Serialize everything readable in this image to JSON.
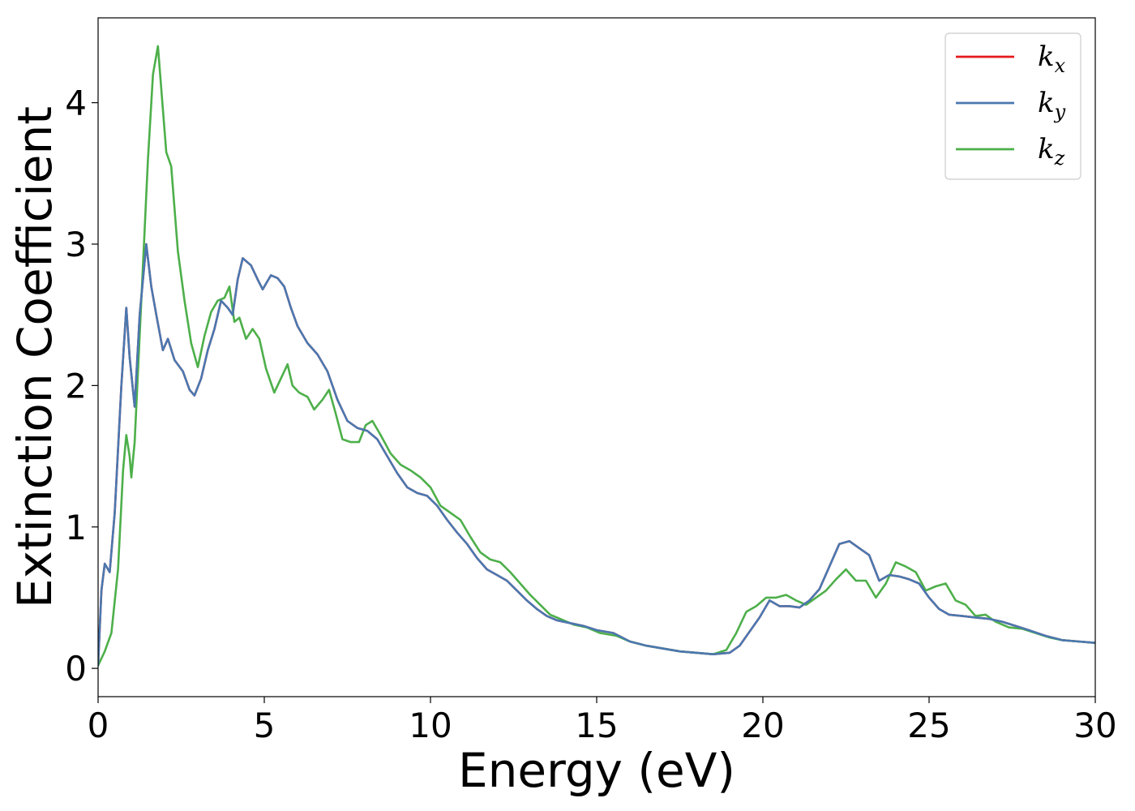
{
  "chart_data": {
    "type": "line",
    "title": "",
    "xlabel": "Energy (eV)",
    "ylabel": "Extinction Coefficient",
    "xlim": [
      0,
      30
    ],
    "ylim": [
      -0.2,
      4.6
    ],
    "xticks": [
      0,
      5,
      10,
      15,
      20,
      25,
      30
    ],
    "yticks": [
      0,
      1,
      2,
      3,
      4
    ],
    "grid": false,
    "legend_position": "top-right",
    "series": [
      {
        "name": "k_x",
        "legend_base": "k",
        "legend_sub": "x",
        "color": "#e41a1c",
        "points": [
          [
            0,
            0.02
          ],
          [
            0.1,
            0.55
          ],
          [
            0.2,
            0.74
          ],
          [
            0.35,
            0.68
          ],
          [
            0.5,
            1.1
          ],
          [
            0.7,
            2.0
          ],
          [
            0.85,
            2.55
          ],
          [
            0.95,
            2.2
          ],
          [
            1.1,
            1.85
          ],
          [
            1.25,
            2.5
          ],
          [
            1.45,
            3.0
          ],
          [
            1.6,
            2.7
          ],
          [
            1.75,
            2.5
          ],
          [
            1.95,
            2.25
          ],
          [
            2.1,
            2.33
          ],
          [
            2.3,
            2.18
          ],
          [
            2.55,
            2.1
          ],
          [
            2.75,
            1.97
          ],
          [
            2.9,
            1.93
          ],
          [
            3.1,
            2.05
          ],
          [
            3.3,
            2.25
          ],
          [
            3.5,
            2.4
          ],
          [
            3.7,
            2.6
          ],
          [
            3.9,
            2.55
          ],
          [
            4.05,
            2.5
          ],
          [
            4.2,
            2.75
          ],
          [
            4.35,
            2.9
          ],
          [
            4.6,
            2.85
          ],
          [
            4.8,
            2.75
          ],
          [
            4.95,
            2.68
          ],
          [
            5.2,
            2.78
          ],
          [
            5.4,
            2.76
          ],
          [
            5.6,
            2.7
          ],
          [
            5.8,
            2.55
          ],
          [
            6.0,
            2.42
          ],
          [
            6.3,
            2.3
          ],
          [
            6.6,
            2.22
          ],
          [
            6.9,
            2.1
          ],
          [
            7.2,
            1.9
          ],
          [
            7.5,
            1.75
          ],
          [
            7.8,
            1.7
          ],
          [
            8.1,
            1.68
          ],
          [
            8.4,
            1.62
          ],
          [
            8.7,
            1.5
          ],
          [
            9.0,
            1.38
          ],
          [
            9.3,
            1.28
          ],
          [
            9.6,
            1.24
          ],
          [
            9.9,
            1.22
          ],
          [
            10.2,
            1.15
          ],
          [
            10.5,
            1.05
          ],
          [
            10.8,
            0.96
          ],
          [
            11.1,
            0.88
          ],
          [
            11.4,
            0.78
          ],
          [
            11.7,
            0.7
          ],
          [
            12.0,
            0.66
          ],
          [
            12.3,
            0.62
          ],
          [
            12.6,
            0.55
          ],
          [
            12.9,
            0.48
          ],
          [
            13.2,
            0.42
          ],
          [
            13.5,
            0.37
          ],
          [
            13.8,
            0.34
          ],
          [
            14.2,
            0.32
          ],
          [
            14.6,
            0.3
          ],
          [
            15.0,
            0.27
          ],
          [
            15.5,
            0.25
          ],
          [
            16.0,
            0.19
          ],
          [
            16.5,
            0.16
          ],
          [
            17.0,
            0.14
          ],
          [
            17.5,
            0.12
          ],
          [
            18.0,
            0.11
          ],
          [
            18.5,
            0.1
          ],
          [
            19.0,
            0.11
          ],
          [
            19.3,
            0.16
          ],
          [
            19.6,
            0.26
          ],
          [
            19.9,
            0.36
          ],
          [
            20.2,
            0.48
          ],
          [
            20.5,
            0.44
          ],
          [
            20.8,
            0.44
          ],
          [
            21.1,
            0.43
          ],
          [
            21.4,
            0.48
          ],
          [
            21.7,
            0.56
          ],
          [
            22.0,
            0.72
          ],
          [
            22.3,
            0.88
          ],
          [
            22.6,
            0.9
          ],
          [
            22.9,
            0.85
          ],
          [
            23.2,
            0.8
          ],
          [
            23.5,
            0.62
          ],
          [
            23.8,
            0.66
          ],
          [
            24.1,
            0.65
          ],
          [
            24.4,
            0.63
          ],
          [
            24.7,
            0.6
          ],
          [
            25.0,
            0.5
          ],
          [
            25.3,
            0.42
          ],
          [
            25.6,
            0.38
          ],
          [
            26.0,
            0.37
          ],
          [
            26.4,
            0.36
          ],
          [
            26.8,
            0.35
          ],
          [
            27.2,
            0.33
          ],
          [
            27.6,
            0.3
          ],
          [
            28.0,
            0.27
          ],
          [
            28.5,
            0.23
          ],
          [
            29.0,
            0.2
          ],
          [
            29.5,
            0.19
          ],
          [
            30.0,
            0.18
          ]
        ]
      },
      {
        "name": "k_y",
        "legend_base": "k",
        "legend_sub": "y",
        "color": "#4a78b0",
        "points": [
          [
            0,
            0.02
          ],
          [
            0.1,
            0.55
          ],
          [
            0.2,
            0.74
          ],
          [
            0.35,
            0.68
          ],
          [
            0.5,
            1.1
          ],
          [
            0.7,
            2.0
          ],
          [
            0.85,
            2.55
          ],
          [
            0.95,
            2.2
          ],
          [
            1.1,
            1.85
          ],
          [
            1.25,
            2.5
          ],
          [
            1.45,
            3.0
          ],
          [
            1.6,
            2.7
          ],
          [
            1.75,
            2.5
          ],
          [
            1.95,
            2.25
          ],
          [
            2.1,
            2.33
          ],
          [
            2.3,
            2.18
          ],
          [
            2.55,
            2.1
          ],
          [
            2.75,
            1.97
          ],
          [
            2.9,
            1.93
          ],
          [
            3.1,
            2.05
          ],
          [
            3.3,
            2.25
          ],
          [
            3.5,
            2.4
          ],
          [
            3.7,
            2.6
          ],
          [
            3.9,
            2.55
          ],
          [
            4.05,
            2.5
          ],
          [
            4.2,
            2.75
          ],
          [
            4.35,
            2.9
          ],
          [
            4.6,
            2.85
          ],
          [
            4.8,
            2.75
          ],
          [
            4.95,
            2.68
          ],
          [
            5.2,
            2.78
          ],
          [
            5.4,
            2.76
          ],
          [
            5.6,
            2.7
          ],
          [
            5.8,
            2.55
          ],
          [
            6.0,
            2.42
          ],
          [
            6.3,
            2.3
          ],
          [
            6.6,
            2.22
          ],
          [
            6.9,
            2.1
          ],
          [
            7.2,
            1.9
          ],
          [
            7.5,
            1.75
          ],
          [
            7.8,
            1.7
          ],
          [
            8.1,
            1.68
          ],
          [
            8.4,
            1.62
          ],
          [
            8.7,
            1.5
          ],
          [
            9.0,
            1.38
          ],
          [
            9.3,
            1.28
          ],
          [
            9.6,
            1.24
          ],
          [
            9.9,
            1.22
          ],
          [
            10.2,
            1.15
          ],
          [
            10.5,
            1.05
          ],
          [
            10.8,
            0.96
          ],
          [
            11.1,
            0.88
          ],
          [
            11.4,
            0.78
          ],
          [
            11.7,
            0.7
          ],
          [
            12.0,
            0.66
          ],
          [
            12.3,
            0.62
          ],
          [
            12.6,
            0.55
          ],
          [
            12.9,
            0.48
          ],
          [
            13.2,
            0.42
          ],
          [
            13.5,
            0.37
          ],
          [
            13.8,
            0.34
          ],
          [
            14.2,
            0.32
          ],
          [
            14.6,
            0.3
          ],
          [
            15.0,
            0.27
          ],
          [
            15.5,
            0.25
          ],
          [
            16.0,
            0.19
          ],
          [
            16.5,
            0.16
          ],
          [
            17.0,
            0.14
          ],
          [
            17.5,
            0.12
          ],
          [
            18.0,
            0.11
          ],
          [
            18.5,
            0.1
          ],
          [
            19.0,
            0.11
          ],
          [
            19.3,
            0.16
          ],
          [
            19.6,
            0.26
          ],
          [
            19.9,
            0.36
          ],
          [
            20.2,
            0.48
          ],
          [
            20.5,
            0.44
          ],
          [
            20.8,
            0.44
          ],
          [
            21.1,
            0.43
          ],
          [
            21.4,
            0.48
          ],
          [
            21.7,
            0.56
          ],
          [
            22.0,
            0.72
          ],
          [
            22.3,
            0.88
          ],
          [
            22.6,
            0.9
          ],
          [
            22.9,
            0.85
          ],
          [
            23.2,
            0.8
          ],
          [
            23.5,
            0.62
          ],
          [
            23.8,
            0.66
          ],
          [
            24.1,
            0.65
          ],
          [
            24.4,
            0.63
          ],
          [
            24.7,
            0.6
          ],
          [
            25.0,
            0.5
          ],
          [
            25.3,
            0.42
          ],
          [
            25.6,
            0.38
          ],
          [
            26.0,
            0.37
          ],
          [
            26.4,
            0.36
          ],
          [
            26.8,
            0.35
          ],
          [
            27.2,
            0.33
          ],
          [
            27.6,
            0.3
          ],
          [
            28.0,
            0.27
          ],
          [
            28.5,
            0.23
          ],
          [
            29.0,
            0.2
          ],
          [
            29.5,
            0.19
          ],
          [
            30.0,
            0.18
          ]
        ]
      },
      {
        "name": "k_z",
        "legend_base": "k",
        "legend_sub": "z",
        "color": "#4daf4a",
        "points": [
          [
            0,
            0.02
          ],
          [
            0.2,
            0.12
          ],
          [
            0.4,
            0.25
          ],
          [
            0.6,
            0.7
          ],
          [
            0.75,
            1.4
          ],
          [
            0.85,
            1.65
          ],
          [
            0.95,
            1.5
          ],
          [
            1.0,
            1.35
          ],
          [
            1.1,
            1.6
          ],
          [
            1.3,
            2.6
          ],
          [
            1.5,
            3.6
          ],
          [
            1.65,
            4.2
          ],
          [
            1.8,
            4.4
          ],
          [
            1.9,
            4.1
          ],
          [
            2.05,
            3.65
          ],
          [
            2.2,
            3.55
          ],
          [
            2.4,
            2.95
          ],
          [
            2.6,
            2.6
          ],
          [
            2.8,
            2.3
          ],
          [
            3.0,
            2.13
          ],
          [
            3.2,
            2.35
          ],
          [
            3.4,
            2.52
          ],
          [
            3.6,
            2.6
          ],
          [
            3.8,
            2.62
          ],
          [
            3.95,
            2.7
          ],
          [
            4.1,
            2.45
          ],
          [
            4.25,
            2.48
          ],
          [
            4.45,
            2.33
          ],
          [
            4.65,
            2.4
          ],
          [
            4.85,
            2.33
          ],
          [
            5.05,
            2.12
          ],
          [
            5.3,
            1.95
          ],
          [
            5.5,
            2.05
          ],
          [
            5.7,
            2.15
          ],
          [
            5.85,
            2.0
          ],
          [
            6.05,
            1.95
          ],
          [
            6.3,
            1.92
          ],
          [
            6.5,
            1.83
          ],
          [
            6.75,
            1.9
          ],
          [
            6.95,
            1.97
          ],
          [
            7.15,
            1.8
          ],
          [
            7.35,
            1.62
          ],
          [
            7.6,
            1.6
          ],
          [
            7.85,
            1.6
          ],
          [
            8.05,
            1.72
          ],
          [
            8.25,
            1.75
          ],
          [
            8.5,
            1.65
          ],
          [
            8.8,
            1.52
          ],
          [
            9.1,
            1.44
          ],
          [
            9.4,
            1.4
          ],
          [
            9.7,
            1.35
          ],
          [
            10.0,
            1.28
          ],
          [
            10.3,
            1.15
          ],
          [
            10.6,
            1.1
          ],
          [
            10.9,
            1.05
          ],
          [
            11.2,
            0.93
          ],
          [
            11.5,
            0.82
          ],
          [
            11.8,
            0.77
          ],
          [
            12.1,
            0.75
          ],
          [
            12.4,
            0.68
          ],
          [
            12.7,
            0.6
          ],
          [
            13.0,
            0.52
          ],
          [
            13.3,
            0.45
          ],
          [
            13.6,
            0.38
          ],
          [
            13.9,
            0.35
          ],
          [
            14.3,
            0.31
          ],
          [
            14.7,
            0.29
          ],
          [
            15.1,
            0.25
          ],
          [
            15.6,
            0.23
          ],
          [
            16.0,
            0.19
          ],
          [
            16.5,
            0.16
          ],
          [
            17.0,
            0.14
          ],
          [
            17.5,
            0.12
          ],
          [
            18.0,
            0.11
          ],
          [
            18.5,
            0.1
          ],
          [
            18.9,
            0.13
          ],
          [
            19.2,
            0.25
          ],
          [
            19.5,
            0.4
          ],
          [
            19.8,
            0.44
          ],
          [
            20.1,
            0.5
          ],
          [
            20.4,
            0.5
          ],
          [
            20.7,
            0.52
          ],
          [
            21.0,
            0.48
          ],
          [
            21.3,
            0.45
          ],
          [
            21.6,
            0.5
          ],
          [
            21.9,
            0.55
          ],
          [
            22.2,
            0.63
          ],
          [
            22.5,
            0.7
          ],
          [
            22.8,
            0.62
          ],
          [
            23.1,
            0.62
          ],
          [
            23.4,
            0.5
          ],
          [
            23.7,
            0.6
          ],
          [
            24.0,
            0.75
          ],
          [
            24.3,
            0.72
          ],
          [
            24.6,
            0.68
          ],
          [
            24.9,
            0.55
          ],
          [
            25.2,
            0.58
          ],
          [
            25.5,
            0.6
          ],
          [
            25.8,
            0.48
          ],
          [
            26.1,
            0.45
          ],
          [
            26.4,
            0.37
          ],
          [
            26.7,
            0.38
          ],
          [
            27.0,
            0.33
          ],
          [
            27.4,
            0.29
          ],
          [
            27.8,
            0.28
          ],
          [
            28.2,
            0.25
          ],
          [
            28.6,
            0.22
          ],
          [
            29.0,
            0.2
          ],
          [
            29.5,
            0.19
          ],
          [
            30.0,
            0.18
          ]
        ]
      }
    ]
  }
}
